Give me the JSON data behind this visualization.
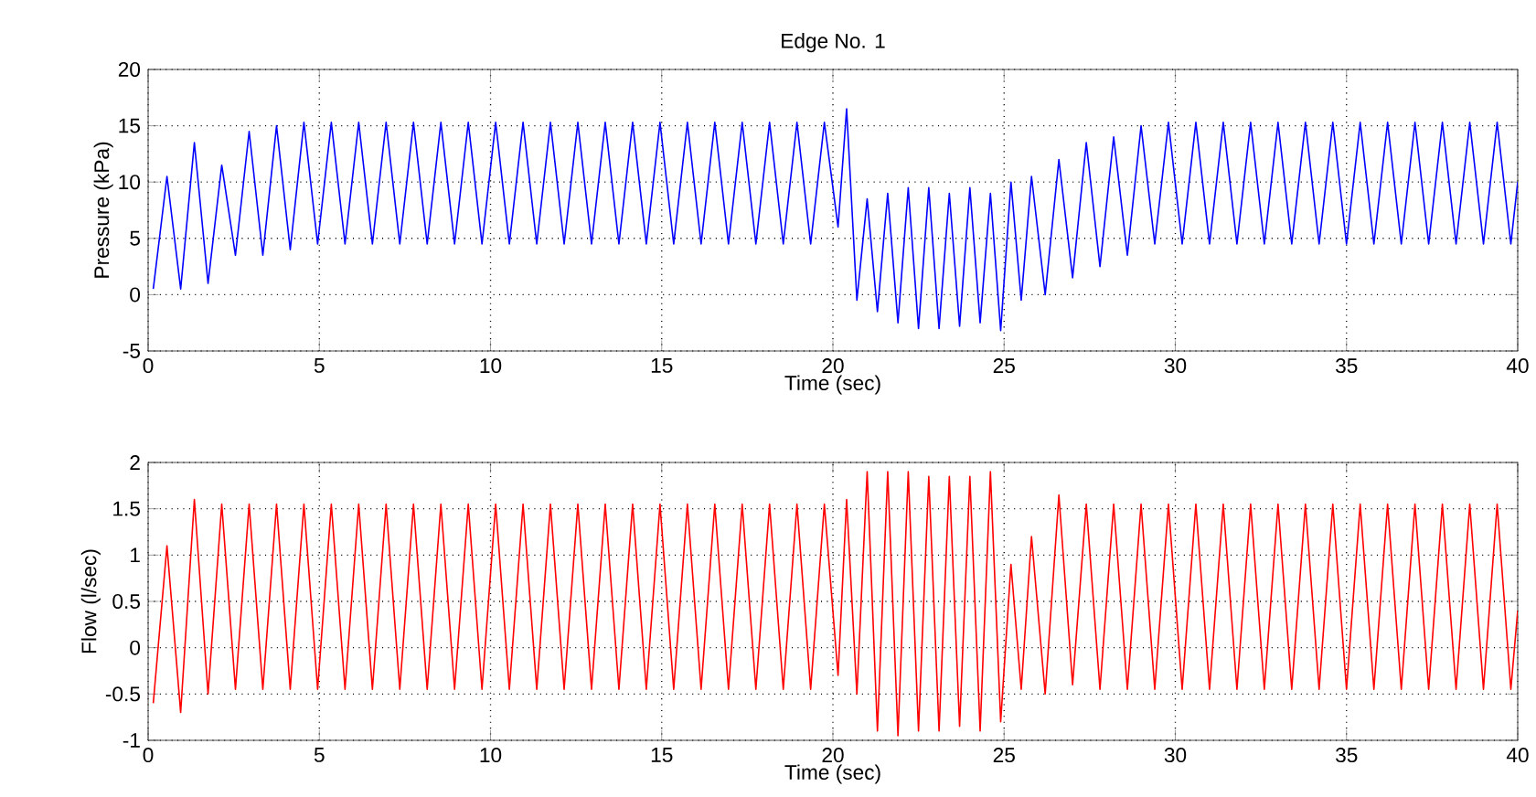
{
  "chart_data": [
    {
      "type": "line",
      "title": "Edge No. 1",
      "xlabel": "Time (sec)",
      "ylabel": "Pressure (kPa)",
      "xlim": [
        0,
        40
      ],
      "xticks": [
        0,
        5,
        10,
        15,
        20,
        25,
        30,
        35,
        40
      ],
      "ylim": [
        -5,
        20
      ],
      "yticks": [
        -5,
        0,
        5,
        10,
        15,
        20
      ],
      "grid": true,
      "x": [
        0.15,
        0.55,
        0.95,
        1.35,
        1.75,
        2.15,
        2.55,
        2.95,
        3.35,
        3.75,
        4.15,
        4.55,
        4.95,
        5.35,
        5.75,
        6.15,
        6.55,
        6.95,
        7.35,
        7.75,
        8.15,
        8.55,
        8.95,
        9.35,
        9.75,
        10.15,
        10.55,
        10.95,
        11.35,
        11.75,
        12.15,
        12.55,
        12.95,
        13.35,
        13.75,
        14.15,
        14.55,
        14.95,
        15.35,
        15.75,
        16.15,
        16.55,
        16.95,
        17.35,
        17.75,
        18.15,
        18.55,
        18.95,
        19.35,
        19.75,
        20.15,
        20.4,
        20.7,
        21.0,
        21.3,
        21.6,
        21.9,
        22.2,
        22.5,
        22.8,
        23.1,
        23.4,
        23.7,
        24.0,
        24.3,
        24.6,
        24.9,
        25.2,
        25.5,
        25.8,
        26.2,
        26.6,
        27.0,
        27.4,
        27.8,
        28.2,
        28.6,
        29.0,
        29.4,
        29.8,
        30.2,
        30.6,
        31.0,
        31.4,
        31.8,
        32.2,
        32.6,
        33.0,
        33.4,
        33.8,
        34.2,
        34.6,
        35.0,
        35.4,
        35.8,
        36.2,
        36.6,
        37.0,
        37.4,
        37.8,
        38.2,
        38.6,
        39.0,
        39.4,
        39.8,
        40
      ],
      "series": [
        {
          "color": "#0000ff",
          "values": [
            0.5,
            10.5,
            0.5,
            13.5,
            1,
            11.5,
            3.5,
            14.5,
            3.5,
            15,
            4,
            15.3,
            4.5,
            15.3,
            4.5,
            15.3,
            4.5,
            15.3,
            4.5,
            15.3,
            4.5,
            15.3,
            4.5,
            15.3,
            4.5,
            15.3,
            4.5,
            15.3,
            4.5,
            15.3,
            4.5,
            15.3,
            4.5,
            15.3,
            4.5,
            15.3,
            4.5,
            15.3,
            4.5,
            15.3,
            4.5,
            15.3,
            4.5,
            15.3,
            4.5,
            15.3,
            4.5,
            15.3,
            4.5,
            15.3,
            6,
            16.5,
            -0.5,
            8.5,
            -1.5,
            9,
            -2.5,
            9.5,
            -3,
            9.5,
            -3,
            9,
            -2.8,
            9.5,
            -2.5,
            9,
            -3.2,
            10,
            -0.5,
            10.5,
            0,
            12,
            1.5,
            13.5,
            2.5,
            14,
            3.5,
            15,
            4.5,
            15.3,
            4.5,
            15.3,
            4.5,
            15.3,
            4.5,
            15.3,
            4.5,
            15.3,
            4.5,
            15.3,
            4.5,
            15.3,
            4.5,
            15.3,
            4.5,
            15.3,
            4.5,
            15.3,
            4.5,
            15.3,
            4.5,
            15.3,
            4.5,
            15.3,
            4.5,
            10
          ]
        }
      ]
    },
    {
      "type": "line",
      "xlabel": "Time (sec)",
      "ylabel": "Flow (l/sec)",
      "xlim": [
        0,
        40
      ],
      "xticks": [
        0,
        5,
        10,
        15,
        20,
        25,
        30,
        35,
        40
      ],
      "ylim": [
        -1,
        2
      ],
      "yticks": [
        -1,
        -0.5,
        0,
        0.5,
        1,
        1.5,
        2
      ],
      "grid": true,
      "x": [
        0.15,
        0.55,
        0.95,
        1.35,
        1.75,
        2.15,
        2.55,
        2.95,
        3.35,
        3.75,
        4.15,
        4.55,
        4.95,
        5.35,
        5.75,
        6.15,
        6.55,
        6.95,
        7.35,
        7.75,
        8.15,
        8.55,
        8.95,
        9.35,
        9.75,
        10.15,
        10.55,
        10.95,
        11.35,
        11.75,
        12.15,
        12.55,
        12.95,
        13.35,
        13.75,
        14.15,
        14.55,
        14.95,
        15.35,
        15.75,
        16.15,
        16.55,
        16.95,
        17.35,
        17.75,
        18.15,
        18.55,
        18.95,
        19.35,
        19.75,
        20.15,
        20.4,
        20.7,
        21.0,
        21.3,
        21.6,
        21.9,
        22.2,
        22.5,
        22.8,
        23.1,
        23.4,
        23.7,
        24.0,
        24.3,
        24.6,
        24.9,
        25.2,
        25.5,
        25.8,
        26.2,
        26.6,
        27.0,
        27.4,
        27.8,
        28.2,
        28.6,
        29.0,
        29.4,
        29.8,
        30.2,
        30.6,
        31.0,
        31.4,
        31.8,
        32.2,
        32.6,
        33.0,
        33.4,
        33.8,
        34.2,
        34.6,
        35.0,
        35.4,
        35.8,
        36.2,
        36.6,
        37.0,
        37.4,
        37.8,
        38.2,
        38.6,
        39.0,
        39.4,
        39.8,
        40
      ],
      "series": [
        {
          "color": "#ff0000",
          "values": [
            -0.6,
            1.1,
            -0.7,
            1.6,
            -0.5,
            1.55,
            -0.45,
            1.55,
            -0.45,
            1.55,
            -0.45,
            1.55,
            -0.45,
            1.55,
            -0.45,
            1.55,
            -0.45,
            1.55,
            -0.45,
            1.55,
            -0.45,
            1.55,
            -0.45,
            1.55,
            -0.45,
            1.55,
            -0.45,
            1.55,
            -0.45,
            1.55,
            -0.45,
            1.55,
            -0.45,
            1.55,
            -0.45,
            1.55,
            -0.45,
            1.55,
            -0.45,
            1.55,
            -0.45,
            1.55,
            -0.45,
            1.55,
            -0.45,
            1.55,
            -0.45,
            1.55,
            -0.45,
            1.55,
            -0.3,
            1.6,
            -0.5,
            1.9,
            -0.9,
            1.9,
            -0.95,
            1.9,
            -0.9,
            1.85,
            -0.9,
            1.85,
            -0.85,
            1.85,
            -0.9,
            1.9,
            -0.8,
            0.9,
            -0.45,
            1.2,
            -0.5,
            1.65,
            -0.4,
            1.55,
            -0.45,
            1.55,
            -0.45,
            1.55,
            -0.45,
            1.55,
            -0.45,
            1.55,
            -0.45,
            1.55,
            -0.45,
            1.55,
            -0.45,
            1.55,
            -0.45,
            1.55,
            -0.45,
            1.55,
            -0.45,
            1.55,
            -0.45,
            1.55,
            -0.45,
            1.55,
            -0.45,
            1.55,
            -0.45,
            1.55,
            -0.45,
            1.55,
            -0.45,
            0.4
          ]
        }
      ]
    }
  ]
}
